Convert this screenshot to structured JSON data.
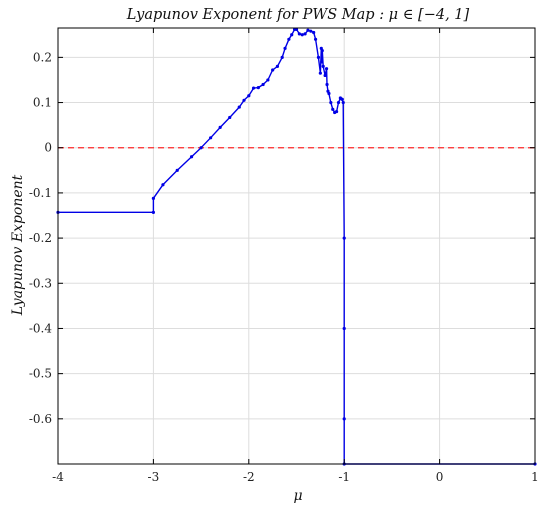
{
  "chart_data": {
    "type": "line",
    "title": "Lyapunov Exponent for PWS Map :  μ ∈ [−4, 1]",
    "xlabel": "μ",
    "ylabel": "Lyapunov Exponent",
    "xlim": [
      -4,
      1
    ],
    "ylim": [
      -0.7,
      0.265
    ],
    "grid": true,
    "xticks": [
      -4,
      -3,
      -2,
      -1,
      0,
      1
    ],
    "xtick_labels": [
      "-4",
      "-3",
      "-2",
      "-1",
      "0",
      "1"
    ],
    "yticks": [
      0.2,
      0.1,
      0,
      -0.1,
      -0.2,
      -0.3,
      -0.4,
      -0.5,
      -0.6
    ],
    "ytick_labels": [
      "0.2",
      "0.1",
      "0",
      "-0.1",
      "-0.2",
      "-0.3",
      "-0.4",
      "-0.5",
      "-0.6"
    ],
    "colors": {
      "series": "#0000e6",
      "reference": "#ff2a2a",
      "grid": "#dddddd",
      "axes": "#000000"
    },
    "reference_line": {
      "y": 0,
      "style": "dashed"
    },
    "series": [
      {
        "x": [
          -4,
          -3.0,
          -3.0,
          -2.9,
          -2.75,
          -2.6,
          -2.5,
          -2.4,
          -2.3,
          -2.2,
          -2.1,
          -2.05,
          -2.0,
          -1.95,
          -1.9,
          -1.85,
          -1.8,
          -1.75,
          -1.7,
          -1.65,
          -1.62,
          -1.58,
          -1.55,
          -1.52,
          -1.5,
          -1.47,
          -1.44,
          -1.41,
          -1.38,
          -1.35,
          -1.32,
          -1.3,
          -1.27,
          -1.25,
          -1.24,
          -1.235,
          -1.23,
          -1.22,
          -1.2,
          -1.185,
          -1.18,
          -1.17,
          -1.16,
          -1.14,
          -1.12,
          -1.1,
          -1.08,
          -1.06,
          -1.04,
          -1.03,
          -1.02,
          -1.01,
          -1.0,
          -1.0,
          -1.0,
          -1.0,
          1
        ],
        "y": [
          -0.143,
          -0.143,
          -0.112,
          -0.082,
          -0.05,
          -0.02,
          0.0,
          0.022,
          0.045,
          0.067,
          0.09,
          0.105,
          0.115,
          0.132,
          0.133,
          0.14,
          0.15,
          0.172,
          0.18,
          0.2,
          0.22,
          0.24,
          0.25,
          0.262,
          0.262,
          0.252,
          0.25,
          0.252,
          0.26,
          0.258,
          0.255,
          0.24,
          0.2,
          0.165,
          0.22,
          0.19,
          0.215,
          0.18,
          0.16,
          0.175,
          0.14,
          0.125,
          0.12,
          0.1,
          0.085,
          0.078,
          0.08,
          0.1,
          0.11,
          0.108,
          0.107,
          0.1,
          -0.2,
          -0.4,
          -0.6,
          -0.7,
          -0.7
        ]
      }
    ]
  }
}
